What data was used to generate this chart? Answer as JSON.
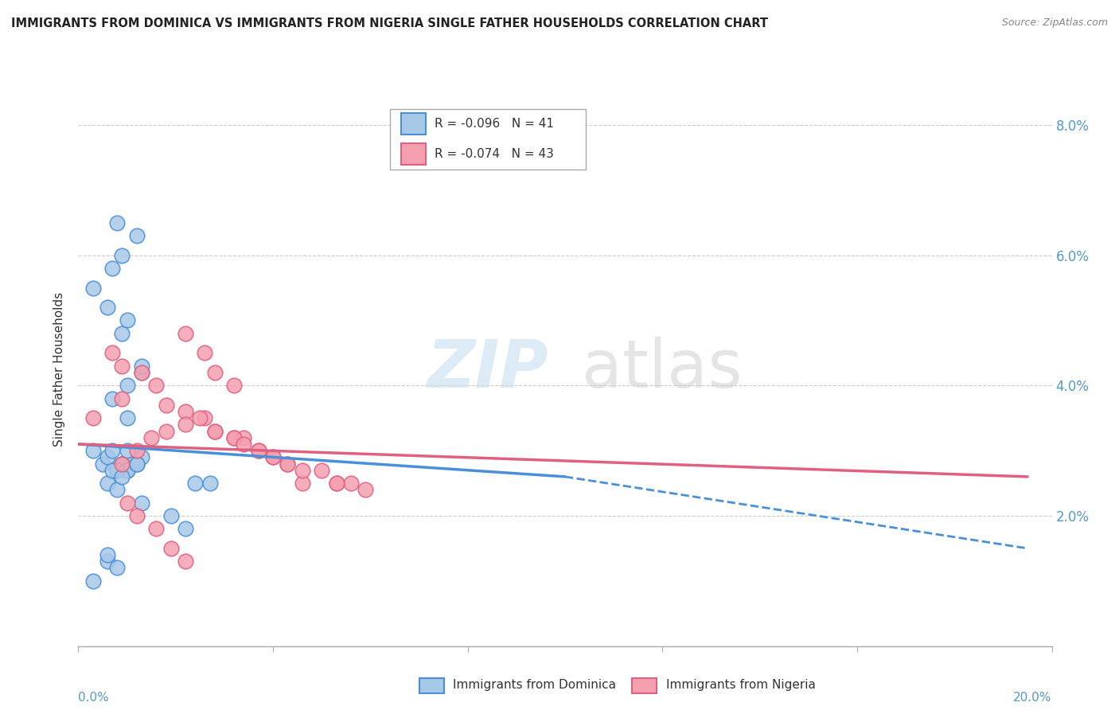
{
  "title": "IMMIGRANTS FROM DOMINICA VS IMMIGRANTS FROM NIGERIA SINGLE FATHER HOUSEHOLDS CORRELATION CHART",
  "source": "Source: ZipAtlas.com",
  "ylabel": "Single Father Households",
  "legend1_r": "R = -0.096",
  "legend1_n": "N = 41",
  "legend2_r": "R = -0.074",
  "legend2_n": "N = 43",
  "dominica_color": "#a8c8e8",
  "nigeria_color": "#f4a0b0",
  "line_dominica_color": "#4a90d9",
  "line_nigeria_color": "#e06080",
  "dominica_x": [
    0.005,
    0.006,
    0.003,
    0.007,
    0.01,
    0.009,
    0.011,
    0.013,
    0.009,
    0.01,
    0.008,
    0.01,
    0.012,
    0.01,
    0.007,
    0.01,
    0.013,
    0.013,
    0.009,
    0.01,
    0.006,
    0.003,
    0.007,
    0.009,
    0.012,
    0.008,
    0.006,
    0.008,
    0.013,
    0.019,
    0.022,
    0.024,
    0.027,
    0.008,
    0.007,
    0.009,
    0.012,
    0.006,
    0.008,
    0.003,
    0.006
  ],
  "dominica_y": [
    0.028,
    0.029,
    0.03,
    0.03,
    0.03,
    0.028,
    0.028,
    0.029,
    0.028,
    0.027,
    0.027,
    0.027,
    0.028,
    0.035,
    0.038,
    0.04,
    0.042,
    0.043,
    0.048,
    0.05,
    0.052,
    0.055,
    0.058,
    0.06,
    0.063,
    0.065,
    0.025,
    0.024,
    0.022,
    0.02,
    0.018,
    0.025,
    0.025,
    0.027,
    0.027,
    0.026,
    0.028,
    0.013,
    0.012,
    0.01,
    0.014
  ],
  "nigeria_x": [
    0.003,
    0.007,
    0.009,
    0.013,
    0.009,
    0.016,
    0.018,
    0.022,
    0.026,
    0.028,
    0.032,
    0.034,
    0.037,
    0.04,
    0.043,
    0.046,
    0.022,
    0.026,
    0.028,
    0.032,
    0.009,
    0.012,
    0.015,
    0.018,
    0.022,
    0.025,
    0.028,
    0.032,
    0.034,
    0.037,
    0.04,
    0.043,
    0.046,
    0.05,
    0.053,
    0.056,
    0.059,
    0.01,
    0.012,
    0.016,
    0.019,
    0.022,
    0.053
  ],
  "nigeria_y": [
    0.035,
    0.045,
    0.043,
    0.042,
    0.038,
    0.04,
    0.037,
    0.036,
    0.035,
    0.033,
    0.032,
    0.032,
    0.03,
    0.029,
    0.028,
    0.025,
    0.048,
    0.045,
    0.042,
    0.04,
    0.028,
    0.03,
    0.032,
    0.033,
    0.034,
    0.035,
    0.033,
    0.032,
    0.031,
    0.03,
    0.029,
    0.028,
    0.027,
    0.027,
    0.025,
    0.025,
    0.024,
    0.022,
    0.02,
    0.018,
    0.015,
    0.013,
    0.025
  ],
  "xlim": [
    0.0,
    0.2
  ],
  "ylim": [
    0.0,
    0.085
  ],
  "yticks": [
    0.02,
    0.04,
    0.06,
    0.08
  ],
  "ytick_labels": [
    "2.0%",
    "4.0%",
    "6.0%",
    "8.0%"
  ],
  "xticks": [
    0.0,
    0.04,
    0.08,
    0.12,
    0.16,
    0.2
  ],
  "dom_line_x0": 0.0,
  "dom_line_x_solid_end": 0.1,
  "dom_line_x_dash_end": 0.195,
  "dom_line_y0": 0.031,
  "dom_line_y_solid_end": 0.026,
  "dom_line_y_dash_end": 0.015,
  "nig_line_x0": 0.0,
  "nig_line_x_end": 0.195,
  "nig_line_y0": 0.031,
  "nig_line_y_end": 0.026
}
